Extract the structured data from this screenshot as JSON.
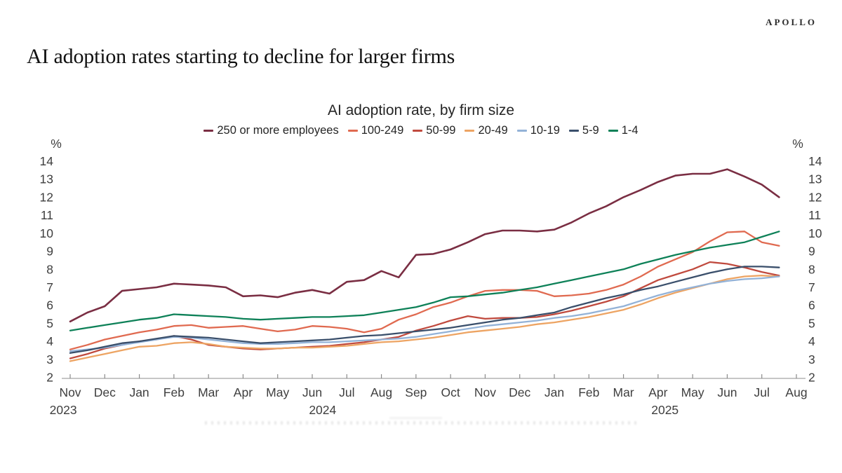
{
  "page": {
    "brand": "APOLLO",
    "title": "AI adoption rates starting to decline for larger firms"
  },
  "chart_data": {
    "type": "line",
    "title": "AI adoption rate, by firm size",
    "legend_position": "top",
    "grid": "off",
    "x_axis": {
      "tick_labels": [
        "Nov",
        "Dec",
        "Jan",
        "Feb",
        "Mar",
        "Apr",
        "May",
        "Jun",
        "Jul",
        "Aug",
        "Sep",
        "Oct",
        "Nov",
        "Dec",
        "Jan",
        "Feb",
        "Mar",
        "Apr",
        "May",
        "Jun",
        "Jul",
        "Aug"
      ],
      "year_labels": [
        {
          "label": "2023",
          "tick": -0.2
        },
        {
          "label": "2024",
          "tick": 7.3
        },
        {
          "label": "2025",
          "tick": 17.2
        }
      ],
      "start_label": "Nov 2023",
      "points_per_month": 2
    },
    "y_axis": {
      "min": 2,
      "max": 14,
      "step": 1,
      "unit": "%"
    },
    "series": [
      {
        "id": "250-plus",
        "name": "250 or more employees",
        "color": "#7a2e43",
        "values": [
          5.1,
          5.6,
          5.95,
          6.8,
          6.9,
          7.0,
          7.2,
          7.15,
          7.1,
          7.0,
          6.5,
          6.55,
          6.45,
          6.7,
          6.85,
          6.65,
          7.3,
          7.4,
          7.9,
          7.55,
          8.8,
          8.85,
          9.1,
          9.5,
          9.95,
          10.15,
          10.15,
          10.1,
          10.2,
          10.6,
          11.1,
          11.5,
          12.0,
          12.4,
          12.85,
          13.2,
          13.3,
          13.3,
          13.55,
          13.15,
          12.7,
          12.0
        ]
      },
      {
        "id": "100-249",
        "name": "100-249",
        "color": "#e06a50",
        "values": [
          3.55,
          3.8,
          4.1,
          4.3,
          4.5,
          4.65,
          4.85,
          4.9,
          4.75,
          4.8,
          4.85,
          4.7,
          4.55,
          4.65,
          4.85,
          4.8,
          4.7,
          4.5,
          4.7,
          5.2,
          5.5,
          5.9,
          6.15,
          6.5,
          6.8,
          6.85,
          6.85,
          6.8,
          6.5,
          6.55,
          6.65,
          6.85,
          7.15,
          7.6,
          8.15,
          8.55,
          8.95,
          9.55,
          10.05,
          10.1,
          9.5,
          9.3
        ]
      },
      {
        "id": "50-99",
        "name": "50-99",
        "color": "#c04a3e",
        "values": [
          3.05,
          3.3,
          3.6,
          3.8,
          4.0,
          4.1,
          4.3,
          4.1,
          3.8,
          3.7,
          3.6,
          3.55,
          3.6,
          3.65,
          3.7,
          3.75,
          3.85,
          3.95,
          4.1,
          4.25,
          4.6,
          4.85,
          5.15,
          5.4,
          5.25,
          5.3,
          5.3,
          5.35,
          5.5,
          5.7,
          5.95,
          6.2,
          6.5,
          6.95,
          7.4,
          7.7,
          8.0,
          8.4,
          8.3,
          8.1,
          7.85,
          7.65
        ]
      },
      {
        "id": "20-49",
        "name": "20-49",
        "color": "#eda463",
        "values": [
          2.9,
          3.1,
          3.3,
          3.5,
          3.7,
          3.75,
          3.9,
          3.95,
          3.85,
          3.7,
          3.65,
          3.6,
          3.6,
          3.65,
          3.65,
          3.7,
          3.75,
          3.85,
          3.95,
          4.0,
          4.1,
          4.2,
          4.35,
          4.5,
          4.6,
          4.7,
          4.8,
          4.95,
          5.05,
          5.2,
          5.35,
          5.55,
          5.75,
          6.05,
          6.4,
          6.7,
          6.95,
          7.2,
          7.45,
          7.6,
          7.65,
          7.6
        ]
      },
      {
        "id": "10-19",
        "name": "10-19",
        "color": "#93b2d7",
        "values": [
          3.45,
          3.55,
          3.65,
          3.8,
          3.95,
          4.1,
          4.25,
          4.2,
          4.1,
          4.0,
          3.9,
          3.85,
          3.85,
          3.9,
          3.95,
          3.95,
          4.0,
          4.05,
          4.1,
          4.15,
          4.25,
          4.4,
          4.55,
          4.7,
          4.85,
          4.95,
          5.05,
          5.15,
          5.3,
          5.4,
          5.55,
          5.75,
          5.95,
          6.25,
          6.55,
          6.8,
          7.0,
          7.2,
          7.35,
          7.45,
          7.5,
          7.6
        ]
      },
      {
        "id": "5-9",
        "name": "5-9",
        "color": "#3a4f6b",
        "values": [
          3.35,
          3.5,
          3.7,
          3.9,
          4.0,
          4.15,
          4.3,
          4.25,
          4.2,
          4.1,
          4.0,
          3.9,
          3.95,
          4.0,
          4.05,
          4.1,
          4.2,
          4.3,
          4.35,
          4.45,
          4.55,
          4.65,
          4.75,
          4.9,
          5.05,
          5.2,
          5.3,
          5.45,
          5.6,
          5.9,
          6.15,
          6.4,
          6.6,
          6.85,
          7.05,
          7.3,
          7.55,
          7.8,
          8.0,
          8.15,
          8.15,
          8.1
        ]
      },
      {
        "id": "1-4",
        "name": "1-4",
        "color": "#0e8158",
        "values": [
          4.6,
          4.75,
          4.9,
          5.05,
          5.2,
          5.3,
          5.5,
          5.45,
          5.4,
          5.35,
          5.25,
          5.2,
          5.25,
          5.3,
          5.35,
          5.35,
          5.4,
          5.45,
          5.6,
          5.75,
          5.9,
          6.15,
          6.45,
          6.5,
          6.6,
          6.7,
          6.85,
          7.0,
          7.2,
          7.4,
          7.6,
          7.8,
          8.0,
          8.3,
          8.55,
          8.8,
          9.0,
          9.2,
          9.35,
          9.5,
          9.8,
          10.1
        ]
      }
    ]
  }
}
